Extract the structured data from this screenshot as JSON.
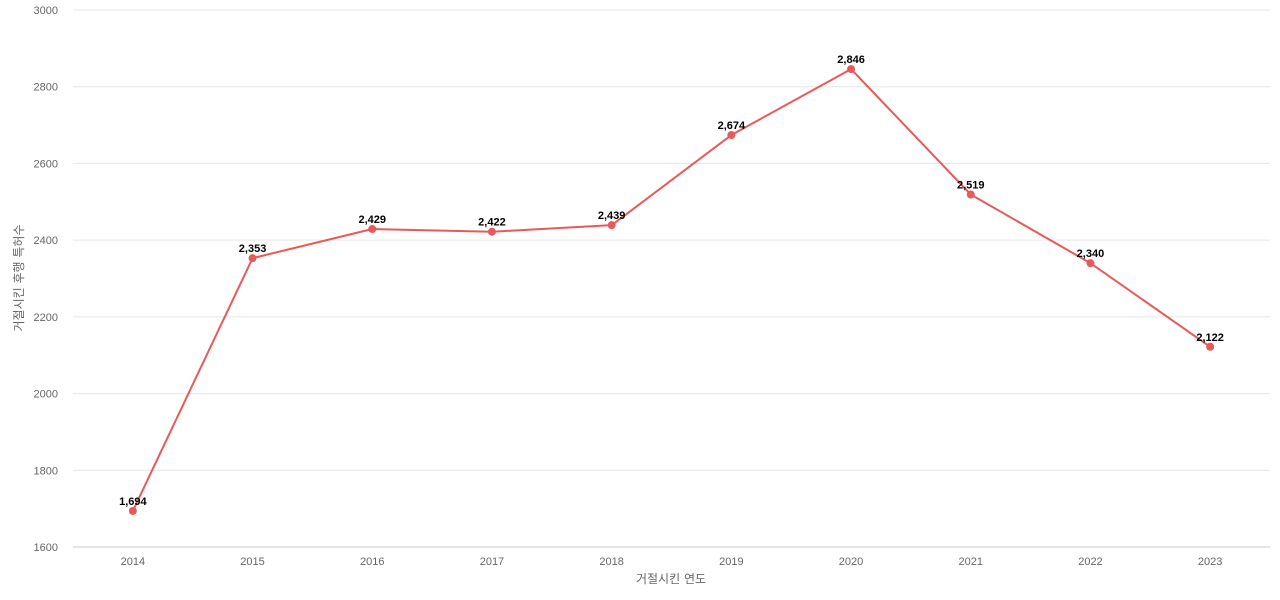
{
  "chart_data": {
    "type": "line",
    "title": "",
    "xlabel": "거절시킨 연도",
    "ylabel": "거절시킨 후행 특허수",
    "categories": [
      "2014",
      "2015",
      "2016",
      "2017",
      "2018",
      "2019",
      "2020",
      "2021",
      "2022",
      "2023"
    ],
    "series": [
      {
        "values": [
          1694,
          2353,
          2429,
          2422,
          2439,
          2674,
          2846,
          2519,
          2340,
          2122
        ],
        "data_labels": [
          "1,694",
          "2,353",
          "2,429",
          "2,422",
          "2,439",
          "2,674",
          "2,846",
          "2,519",
          "2,340",
          "2,122"
        ],
        "color": "#e8595a"
      }
    ],
    "ylim": [
      1600,
      3000
    ],
    "yticks": [
      1600,
      1800,
      2000,
      2200,
      2400,
      2600,
      2800,
      3000
    ],
    "grid": true,
    "legend": "none"
  }
}
